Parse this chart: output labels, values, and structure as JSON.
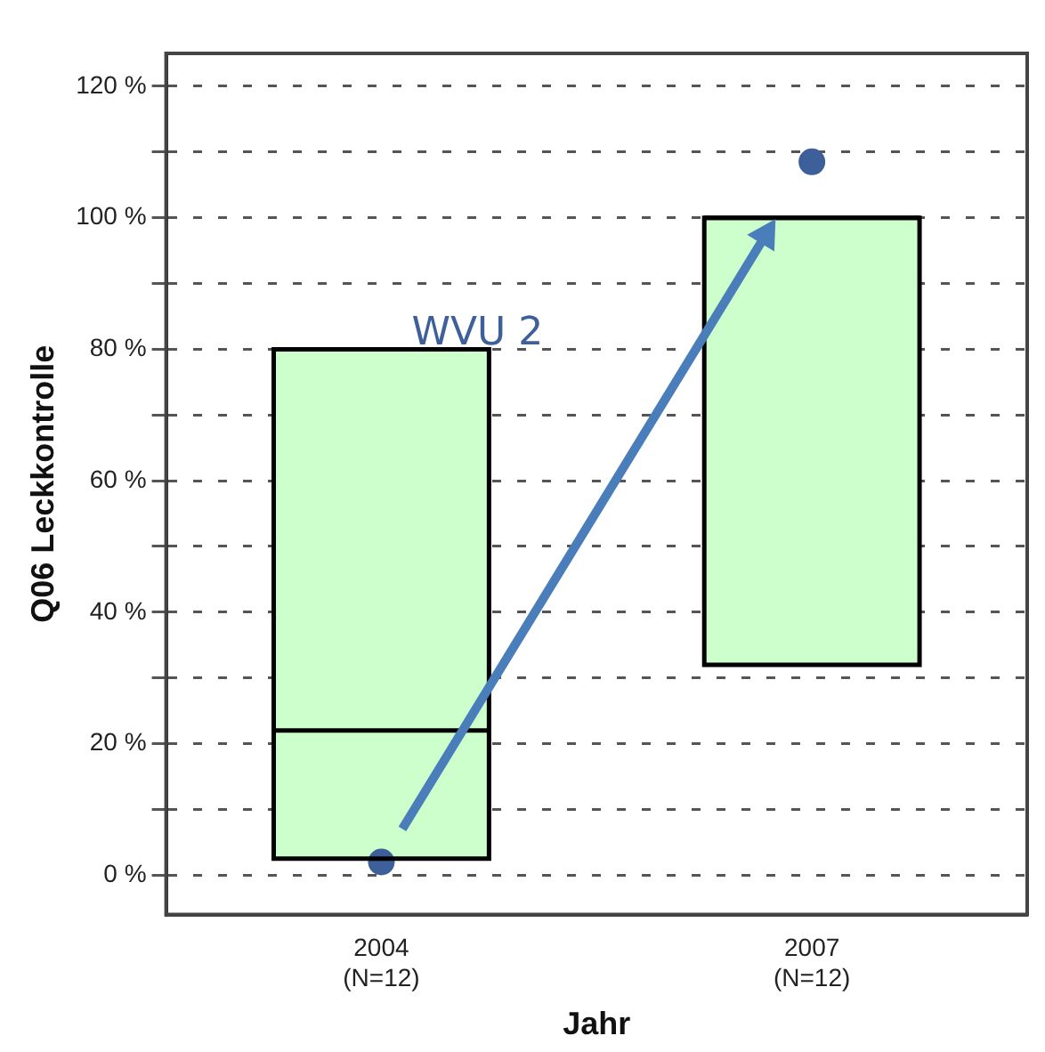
{
  "chart_data": {
    "type": "box",
    "xlabel": "Jahr",
    "ylabel": "Q06 Leckkontrolle",
    "categories": [
      "2004\n(N=12)",
      "2007\n(N=12)"
    ],
    "boxes": [
      {
        "low": 2.5,
        "q1": 2.5,
        "median": 22,
        "q3": 80,
        "high": 80
      },
      {
        "low": 32,
        "q1": 32,
        "median": 100,
        "q3": 100,
        "high": 100
      }
    ],
    "color": "#ccffcc",
    "series": [
      {
        "type": "scatter",
        "name": "WVU 2",
        "color": "#3d5f9a",
        "x": [
          "2004\n(N=12)",
          "2007\n(N=12)"
        ],
        "values": [
          2,
          108.5
        ]
      }
    ],
    "ylim": [
      -6,
      125
    ],
    "yticks": [
      {
        "value": 0,
        "label": "0 %"
      },
      {
        "value": 10,
        "label": null
      },
      {
        "value": 20,
        "label": "20 %"
      },
      {
        "value": 30,
        "label": null
      },
      {
        "value": 40,
        "label": "40 %"
      },
      {
        "value": 50,
        "label": null
      },
      {
        "value": 60,
        "label": "60 %"
      },
      {
        "value": 70,
        "label": null
      },
      {
        "value": 80,
        "label": "80 %"
      },
      {
        "value": 90,
        "label": null
      },
      {
        "value": 100,
        "label": "100 %"
      },
      {
        "value": 110,
        "label": null
      },
      {
        "value": 120,
        "label": "120 %"
      }
    ],
    "grid": "y",
    "legend": false,
    "marker": "circle"
  }
}
